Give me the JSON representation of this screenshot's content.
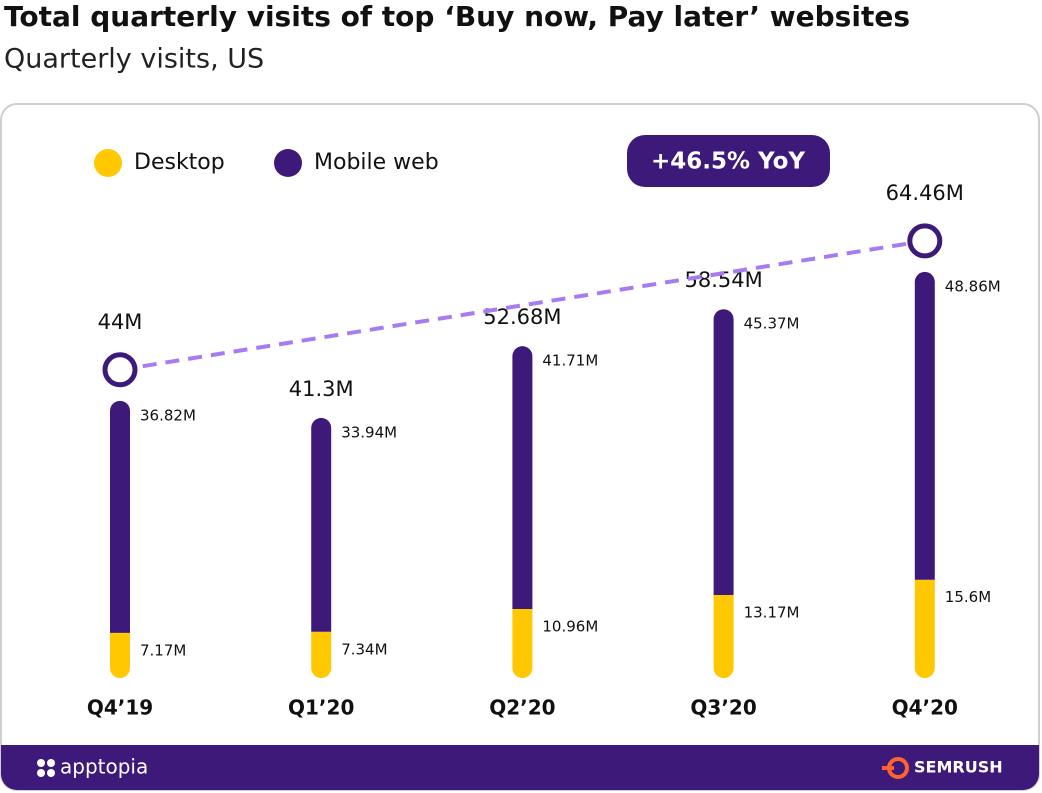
{
  "chart_data": {
    "type": "bar",
    "stacked": true,
    "title": "Total quarterly visits of top ‘Buy now, Pay later’ websites",
    "subtitle": "Quarterly visits, US",
    "annotation": "+46.5% YoY",
    "categories": [
      "Q4’19",
      "Q1’20",
      "Q2’20",
      "Q3’20",
      "Q4’20"
    ],
    "series": [
      {
        "name": "Desktop",
        "color": "#ffc800",
        "values": [
          7.17,
          7.34,
          10.96,
          13.17,
          15.6
        ],
        "value_labels": [
          "7.17M",
          "7.34M",
          "10.96M",
          "13.17M",
          "15.6M"
        ]
      },
      {
        "name": "Mobile web",
        "color": "#3d1a7a",
        "values": [
          36.82,
          33.94,
          41.71,
          45.37,
          48.86
        ],
        "value_labels": [
          "36.82M",
          "33.94M",
          "41.71M",
          "45.37M",
          "48.86M"
        ]
      }
    ],
    "totals": {
      "color": "#a77cf0",
      "values": [
        44,
        41.3,
        52.68,
        58.54,
        64.46
      ],
      "value_labels": [
        "44M",
        "41.3M",
        "52.68M",
        "58.54M",
        "64.46M"
      ]
    },
    "brands": [
      "apptopia",
      "SEMRUSH"
    ]
  }
}
